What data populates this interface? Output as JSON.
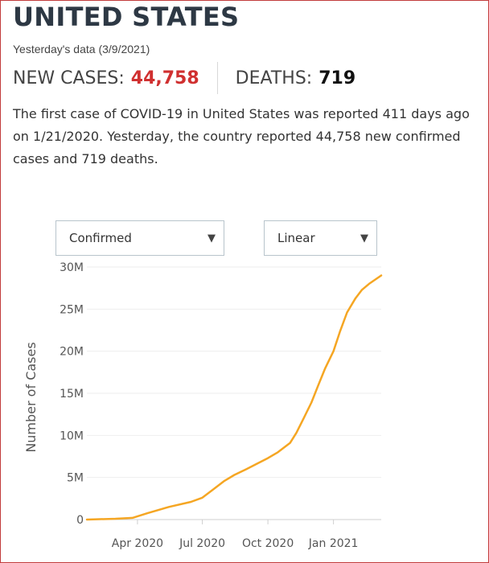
{
  "header": {
    "title": "UNITED STATES",
    "subtitle": "Yesterday's data (3/9/2021)",
    "new_cases_label": "NEW CASES:",
    "new_cases_value": "44,758",
    "deaths_label": "DEATHS:",
    "deaths_value": "719",
    "description": "The first case of COVID-19 in United States was reported 411 days ago on 1/21/2020. Yesterday, the country reported 44,758 new confirmed cases and 719 deaths."
  },
  "controls": {
    "metric_value": "Confirmed",
    "scale_value": "Linear"
  },
  "colors": {
    "accent_red": "#d03030",
    "line": "#f5a623",
    "title": "#2d3844",
    "border": "#c23b3b"
  },
  "chart_data": {
    "type": "line",
    "ylabel": "Number of Cases",
    "xlabel": "",
    "yticks": [
      "0",
      "5M",
      "10M",
      "15M",
      "20M",
      "25M",
      "30M"
    ],
    "ylim": [
      0,
      30000000
    ],
    "xticks": [
      {
        "date": "2020-04-01",
        "label": "Apr 2020"
      },
      {
        "date": "2020-07-01",
        "label": "Jul 2020"
      },
      {
        "date": "2020-10-01",
        "label": "Oct 2020"
      },
      {
        "date": "2021-01-01",
        "label": "Jan 2021"
      }
    ],
    "xlim": [
      "2020-01-21",
      "2021-03-09"
    ],
    "grid": true,
    "series": [
      {
        "points": [
          [
            "2020-01-21",
            0
          ],
          [
            "2020-03-01",
            100000
          ],
          [
            "2020-03-25",
            200000
          ],
          [
            "2020-04-15",
            750000
          ],
          [
            "2020-05-15",
            1500000
          ],
          [
            "2020-06-15",
            2100000
          ],
          [
            "2020-07-01",
            2600000
          ],
          [
            "2020-07-15",
            3500000
          ],
          [
            "2020-08-01",
            4600000
          ],
          [
            "2020-08-15",
            5300000
          ],
          [
            "2020-09-01",
            6000000
          ],
          [
            "2020-09-15",
            6600000
          ],
          [
            "2020-10-01",
            7300000
          ],
          [
            "2020-10-15",
            8000000
          ],
          [
            "2020-11-01",
            9100000
          ],
          [
            "2020-11-10",
            10300000
          ],
          [
            "2020-11-20",
            12000000
          ],
          [
            "2020-12-01",
            13900000
          ],
          [
            "2020-12-10",
            15800000
          ],
          [
            "2020-12-20",
            17900000
          ],
          [
            "2021-01-01",
            20000000
          ],
          [
            "2021-01-10",
            22300000
          ],
          [
            "2021-01-20",
            24600000
          ],
          [
            "2021-02-01",
            26300000
          ],
          [
            "2021-02-10",
            27300000
          ],
          [
            "2021-02-20",
            28000000
          ],
          [
            "2021-03-09",
            29000000
          ]
        ]
      }
    ]
  }
}
